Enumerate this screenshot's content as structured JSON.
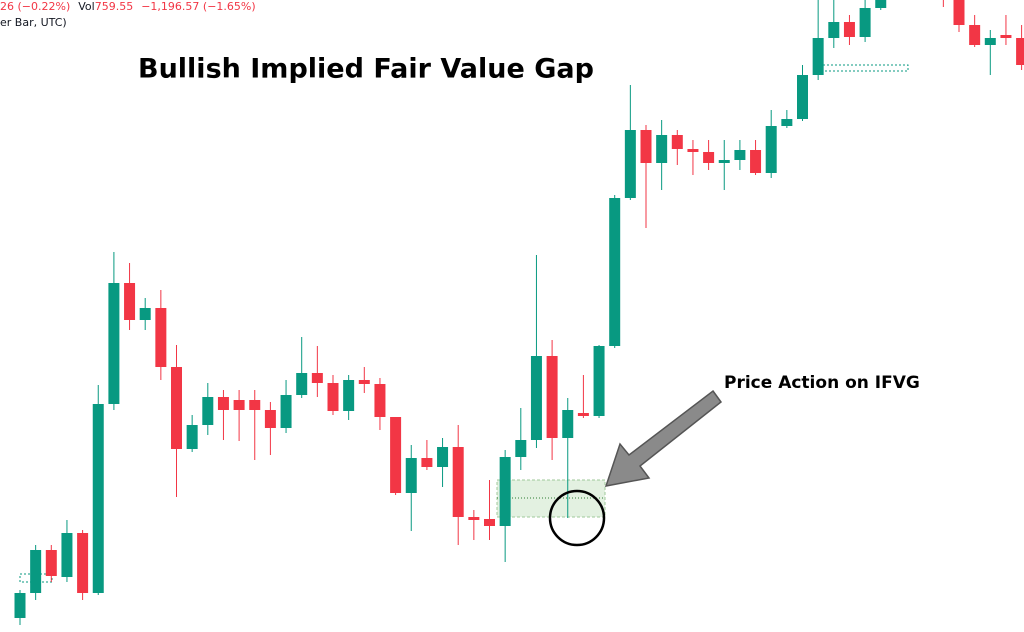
{
  "header": {
    "line1": {
      "change": "26 (−0.22%)",
      "vol_label": "Vol",
      "vol_value": "759.55",
      "vol_change": "−1,196.57 (−1.65%)"
    },
    "line2": "er Bar, UTC)"
  },
  "chart_data": {
    "type": "candlestick",
    "title": "Bullish Implied Fair Value Gap",
    "annotation": "Price Action on IFVG",
    "ylim": [
      0,
      632
    ],
    "up_color": "#089981",
    "down_color": "#f23645",
    "open": [
      14,
      39,
      82,
      55,
      99,
      39,
      228,
      349,
      312,
      324,
      265,
      183,
      207,
      235,
      232,
      232,
      222,
      204,
      237,
      259,
      249,
      221,
      252,
      248,
      215,
      139,
      174,
      165,
      185,
      115,
      113,
      106,
      175,
      192,
      276,
      194,
      219,
      216,
      286,
      434,
      502,
      469,
      497,
      483,
      480,
      469,
      472,
      482,
      459,
      506,
      513,
      557,
      594,
      610,
      595,
      624,
      640,
      660,
      675,
      650,
      632,
      607,
      587,
      597,
      594
    ],
    "high": [
      42,
      87,
      87,
      112,
      102,
      247,
      380,
      369,
      334,
      342,
      287,
      217,
      249,
      242,
      242,
      242,
      230,
      252,
      295,
      286,
      257,
      257,
      265,
      254,
      215,
      187,
      192,
      194,
      207,
      122,
      152,
      182,
      224,
      377,
      292,
      234,
      257,
      287,
      437,
      547,
      507,
      512,
      502,
      492,
      492,
      492,
      492,
      492,
      522,
      522,
      567,
      640,
      640,
      617,
      640,
      645,
      670,
      685,
      680,
      655,
      640,
      617,
      602,
      617,
      607
    ],
    "low": [
      7,
      32,
      50,
      50,
      32,
      37,
      222,
      302,
      302,
      252,
      135,
      180,
      197,
      192,
      191,
      172,
      177,
      199,
      234,
      235,
      217,
      212,
      239,
      202,
      137,
      101,
      162,
      145,
      87,
      92,
      92,
      70,
      162,
      184,
      172,
      114,
      214,
      214,
      284,
      432,
      404,
      442,
      467,
      457,
      462,
      442,
      462,
      457,
      454,
      504,
      511,
      552,
      584,
      587,
      590,
      622,
      635,
      655,
      640,
      625,
      600,
      585,
      557,
      587,
      562
    ],
    "close": [
      39,
      82,
      56,
      99,
      39,
      228,
      349,
      312,
      324,
      265,
      183,
      207,
      235,
      222,
      222,
      222,
      204,
      237,
      259,
      249,
      221,
      252,
      248,
      215,
      139,
      174,
      165,
      185,
      115,
      112,
      106,
      175,
      192,
      276,
      194,
      222,
      216,
      286,
      434,
      502,
      469,
      497,
      483,
      480,
      469,
      472,
      482,
      459,
      506,
      513,
      557,
      594,
      610,
      595,
      624,
      640,
      660,
      675,
      650,
      632,
      607,
      587,
      594,
      594,
      567
    ]
  }
}
